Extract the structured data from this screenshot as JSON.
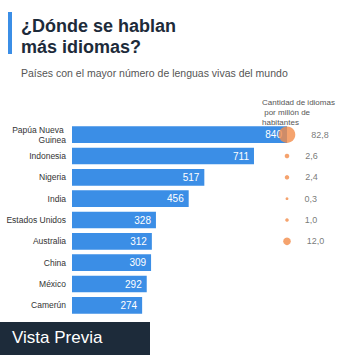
{
  "chart_data": {
    "type": "bar",
    "orientation": "horizontal",
    "title": "¿Dónde se hablan más idiomas?",
    "subtitle": "Países con el mayor número de lenguas vivas del mundo",
    "categories": [
      "Papúa Nueva Guinea",
      "Indonesia",
      "Nigeria",
      "India",
      "Estados Unidos",
      "Australia",
      "China",
      "México",
      "Camerún"
    ],
    "values": [
      840,
      711,
      517,
      456,
      328,
      312,
      309,
      292,
      274
    ],
    "color": "#3b8ee6",
    "xlim": [
      0,
      840
    ],
    "grid": false,
    "data_labels": true,
    "tick_labels": "y",
    "per_million": {
      "title": "Cantidad de idiomas por millón de habitantes",
      "values": [
        82.8,
        2.6,
        2.4,
        0.3,
        1.0,
        12.0,
        null,
        null,
        null
      ],
      "value_labels": [
        "82,8",
        "2,6",
        "2,4",
        "0,3",
        "1,0",
        "12,0",
        null,
        null,
        null
      ],
      "color": "#f28c4a"
    },
    "annotations": [
      "Vista Previa"
    ]
  }
}
